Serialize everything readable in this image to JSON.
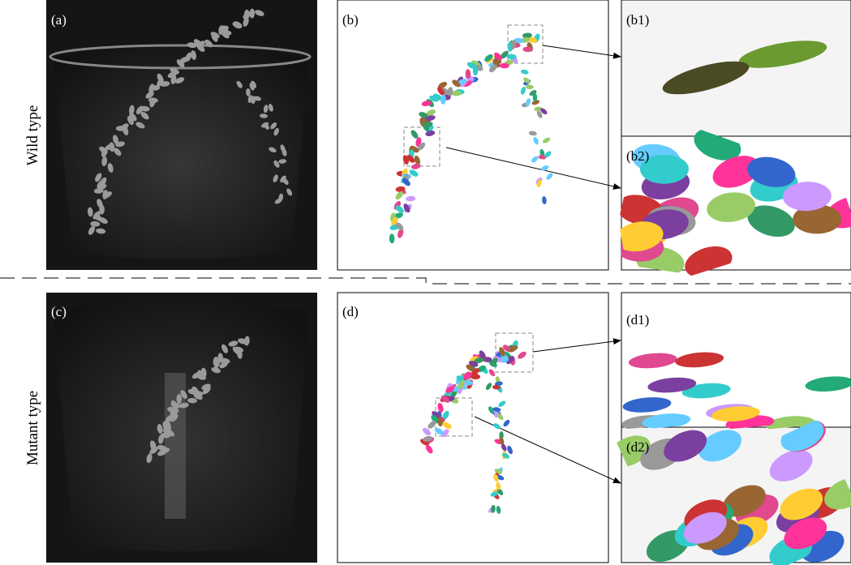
{
  "rows": [
    {
      "label": "Wild type",
      "panels": {
        "overview": "(a)",
        "segmented": "(b)",
        "zoom1": "(b1)",
        "zoom2": "(b2)"
      }
    },
    {
      "label": "Mutant type",
      "panels": {
        "overview": "(c)",
        "segmented": "(d)",
        "zoom1": "(d1)",
        "zoom2": "(d2)"
      }
    }
  ]
}
